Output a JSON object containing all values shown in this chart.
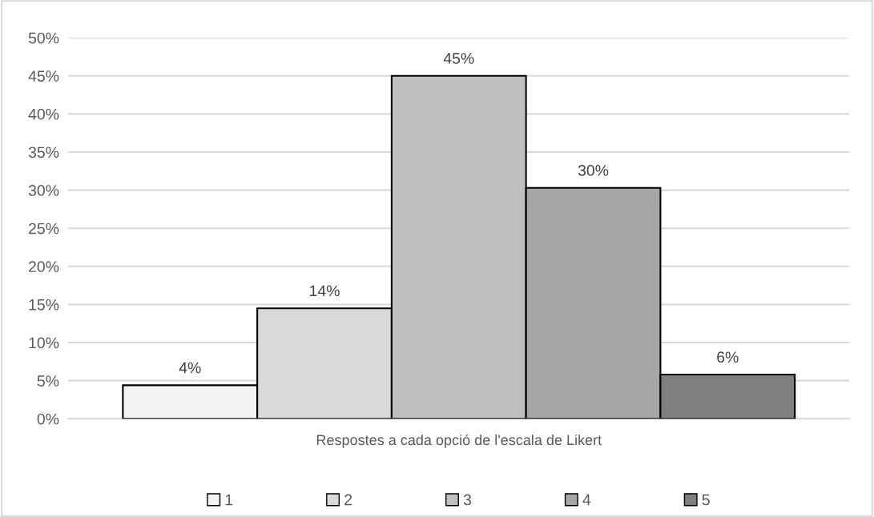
{
  "chart_data": {
    "type": "bar",
    "categories": [
      "Respostes a cada opció de l'escala de Likert"
    ],
    "series": [
      {
        "name": "1",
        "color": "#f2f2f2",
        "values": [
          4.4
        ],
        "value_labels": [
          "4%"
        ]
      },
      {
        "name": "2",
        "color": "#d9d9d9",
        "values": [
          14.5
        ],
        "value_labels": [
          "14%"
        ]
      },
      {
        "name": "3",
        "color": "#bfbfbf",
        "values": [
          45
        ],
        "value_labels": [
          "45%"
        ]
      },
      {
        "name": "4",
        "color": "#a6a6a6",
        "values": [
          30.3
        ],
        "value_labels": [
          "30%"
        ]
      },
      {
        "name": "5",
        "color": "#7f7f7f",
        "values": [
          5.8
        ],
        "value_labels": [
          "6%"
        ]
      }
    ],
    "ylim": [
      0,
      50
    ],
    "yticks": [
      {
        "value": 0,
        "label": "0%"
      },
      {
        "value": 5,
        "label": "5%"
      },
      {
        "value": 10,
        "label": "10%"
      },
      {
        "value": 15,
        "label": "15%"
      },
      {
        "value": 20,
        "label": "20%"
      },
      {
        "value": 25,
        "label": "25%"
      },
      {
        "value": 30,
        "label": "30%"
      },
      {
        "value": 35,
        "label": "35%"
      },
      {
        "value": 40,
        "label": "40%"
      },
      {
        "value": 45,
        "label": "45%"
      },
      {
        "value": 50,
        "label": "50%"
      }
    ],
    "grid": "y",
    "legend": "bottom"
  }
}
